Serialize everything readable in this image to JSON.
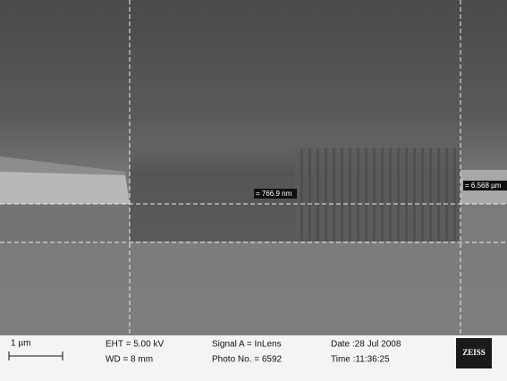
{
  "measurements": [
    {
      "label": "= 766.9 nm"
    },
    {
      "label": "= 6.568 µm"
    }
  ],
  "info_bar": {
    "scale": "1 µm",
    "eht": "EHT = 5.00 kV",
    "wd": "WD =  8 mm",
    "signal": "Signal A = InLens",
    "photo": "Photo No. = 6592",
    "date": "Date :28 Jul 2008",
    "time": "Time :11:36:25",
    "logo": "ZEISS"
  }
}
